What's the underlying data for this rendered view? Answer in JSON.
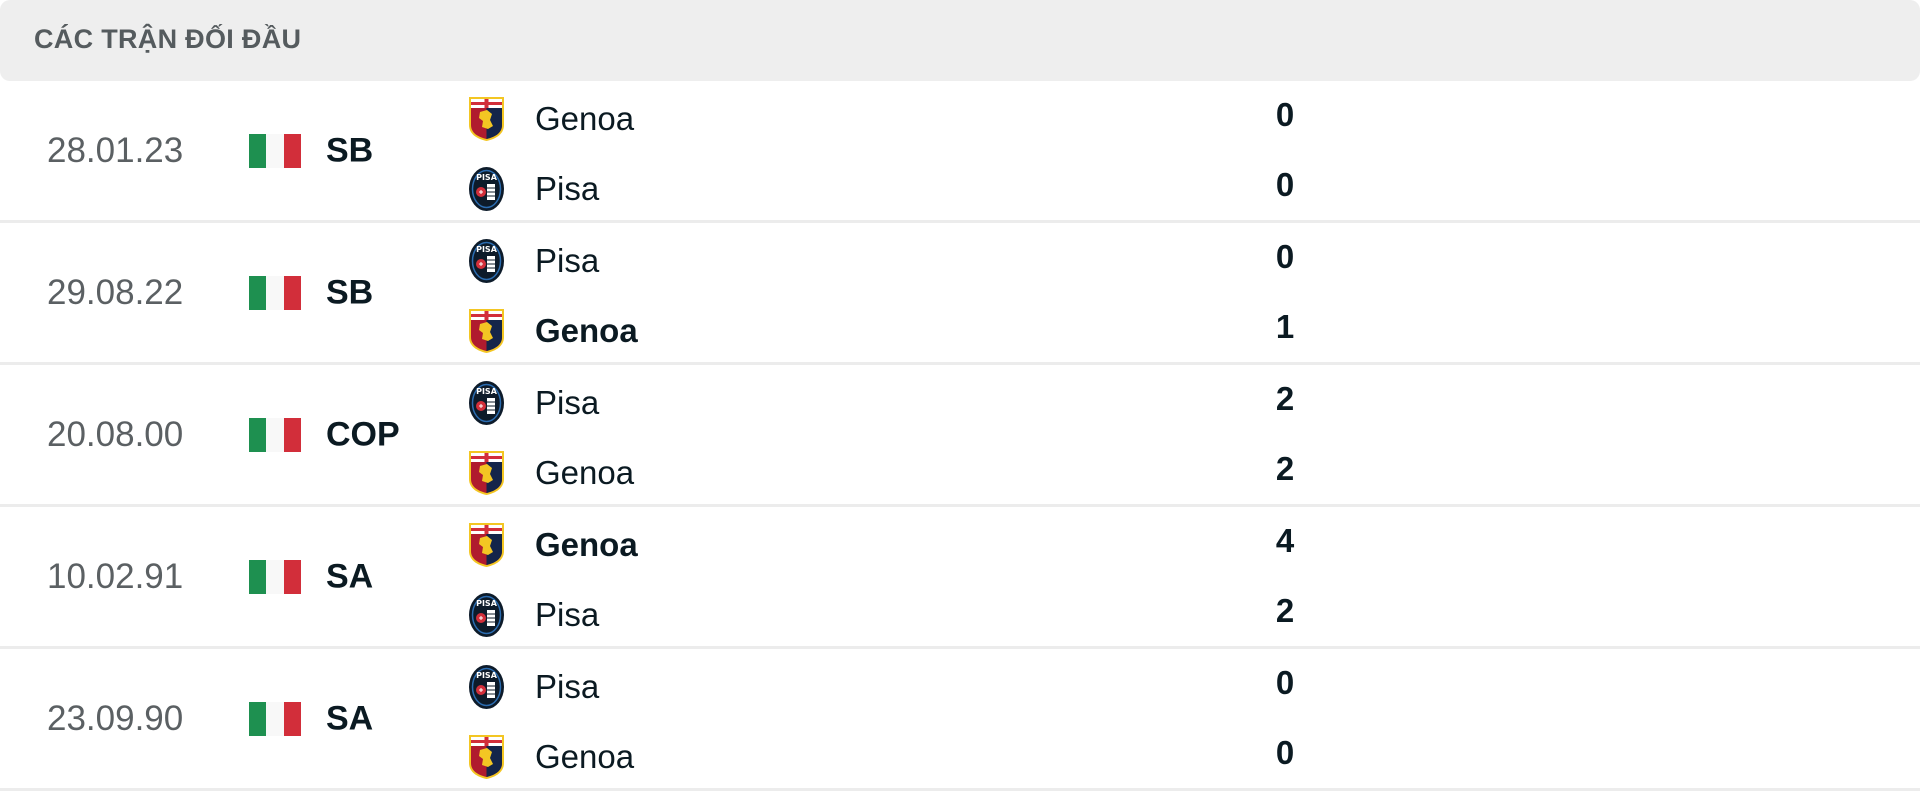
{
  "header": {
    "title": "CÁC TRẬN ĐỐI ĐẦU"
  },
  "colors": {
    "header_bg": "#eeeeee",
    "flag_green": "#1e9050",
    "flag_white": "#f8f8f8",
    "flag_red": "#d22e3a"
  },
  "matches": [
    {
      "date": "28.01.23",
      "country_flag": "italy-flag",
      "league": "SB",
      "home": {
        "name": "Genoa",
        "logo": "genoa-logo",
        "score": "0",
        "winner": false
      },
      "away": {
        "name": "Pisa",
        "logo": "pisa-logo",
        "score": "0",
        "winner": false
      }
    },
    {
      "date": "29.08.22",
      "country_flag": "italy-flag",
      "league": "SB",
      "home": {
        "name": "Pisa",
        "logo": "pisa-logo",
        "score": "0",
        "winner": false
      },
      "away": {
        "name": "Genoa",
        "logo": "genoa-logo",
        "score": "1",
        "winner": true
      }
    },
    {
      "date": "20.08.00",
      "country_flag": "italy-flag",
      "league": "COP",
      "home": {
        "name": "Pisa",
        "logo": "pisa-logo",
        "score": "2",
        "winner": false
      },
      "away": {
        "name": "Genoa",
        "logo": "genoa-logo",
        "score": "2",
        "winner": false
      }
    },
    {
      "date": "10.02.91",
      "country_flag": "italy-flag",
      "league": "SA",
      "home": {
        "name": "Genoa",
        "logo": "genoa-logo",
        "score": "4",
        "winner": true
      },
      "away": {
        "name": "Pisa",
        "logo": "pisa-logo",
        "score": "2",
        "winner": false
      }
    },
    {
      "date": "23.09.90",
      "country_flag": "italy-flag",
      "league": "SA",
      "home": {
        "name": "Pisa",
        "logo": "pisa-logo",
        "score": "0",
        "winner": false
      },
      "away": {
        "name": "Genoa",
        "logo": "genoa-logo",
        "score": "0",
        "winner": false
      }
    }
  ]
}
